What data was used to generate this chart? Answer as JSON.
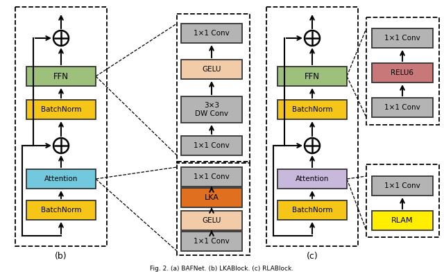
{
  "fig_width": 6.4,
  "fig_height": 3.98,
  "bg_color": "#ffffff",
  "colors": {
    "green": "#9dc17a",
    "yellow": "#f5c518",
    "blue": "#72c8dc",
    "orange": "#e07020",
    "peach": "#f2cba8",
    "purple": "#c8b8dc",
    "red_pink": "#c87878",
    "light_gray": "#b4b4b4",
    "bright_yellow": "#ffee00"
  },
  "label_b": "(b)",
  "label_c": "(c)",
  "caption": "Fig. 2. (a) BAFNet. (b) LKABlock. (c) RLABlock."
}
